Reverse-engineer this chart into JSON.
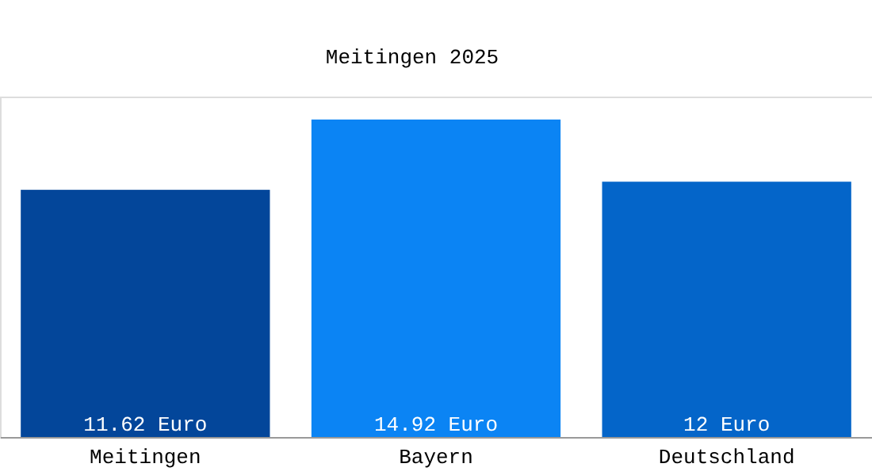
{
  "chart_data": {
    "type": "bar",
    "title": "Meitingen 2025",
    "categories": [
      "Meitingen",
      "Bayern",
      "Deutschland"
    ],
    "values": [
      11.62,
      14.92,
      12
    ],
    "colors": [
      "#03469a",
      "#0b84f4",
      "#0465c9"
    ],
    "value_labels": [
      "11.62 Euro",
      "14.92 Euro",
      "12 Euro"
    ],
    "grid": false
  }
}
